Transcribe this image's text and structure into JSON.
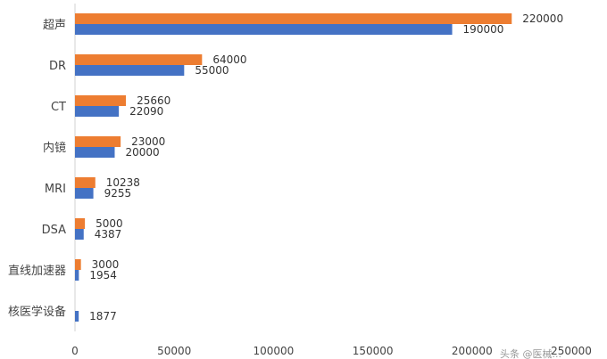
{
  "chart_data": {
    "type": "bar",
    "orientation": "horizontal",
    "title": "",
    "xlabel": "",
    "ylabel": "",
    "categories": [
      "超声",
      "DR",
      "CT",
      "内镜",
      "MRI",
      "DSA",
      "直线加速器",
      "核医学设备"
    ],
    "series": [
      {
        "color": "#ED7D31",
        "values": [
          220000,
          64000,
          25660,
          23000,
          10238,
          5000,
          3000,
          null
        ]
      },
      {
        "color": "#4472C4",
        "values": [
          190000,
          55000,
          22090,
          20000,
          9255,
          4387,
          1954,
          1877
        ]
      }
    ],
    "xlim": [
      0,
      250000
    ],
    "xticks": [
      "0",
      "50000",
      "100000",
      "150000",
      "200000",
      "250000"
    ],
    "grid": false,
    "legend": "none"
  },
  "watermark": "头条 @医械..."
}
